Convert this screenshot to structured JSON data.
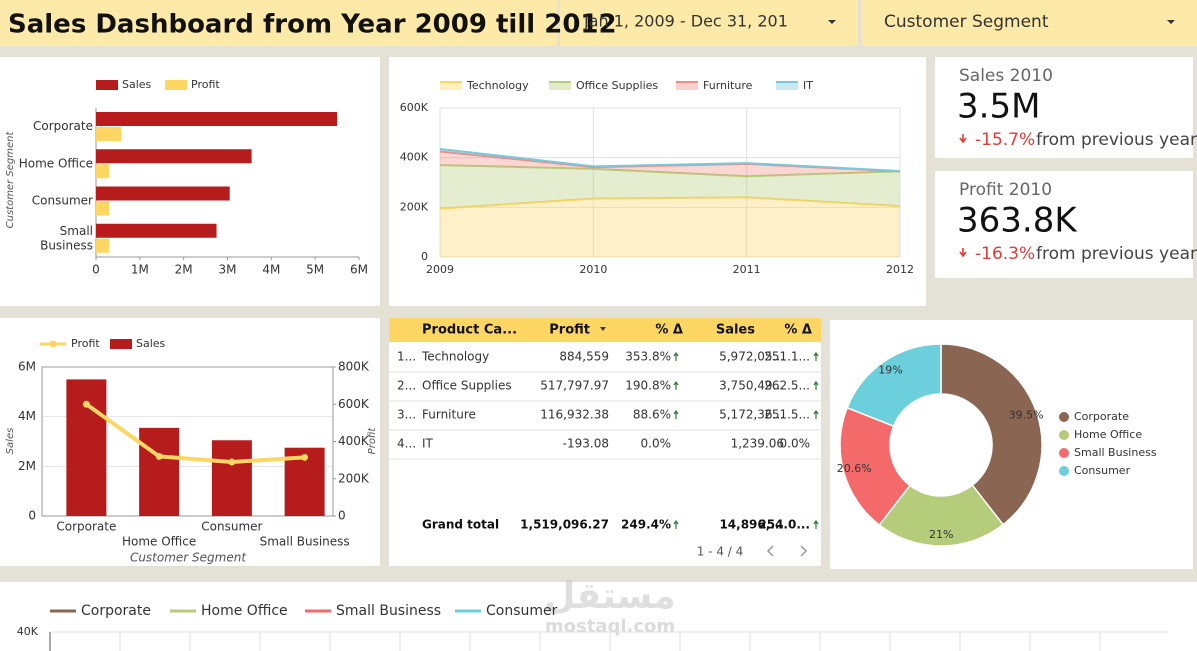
{
  "header": {
    "title": "Sales Dashboard from Year 2009 till 2012",
    "date_range": "Jan 1, 2009 - Dec 31, 201",
    "segment_filter": "Customer Segment"
  },
  "kpis": [
    {
      "label": "Sales 2010",
      "value": "3.5M",
      "change": "-15.7%",
      "note": "from previous year"
    },
    {
      "label": "Profit 2010",
      "value": "363.8K",
      "change": "-16.3%",
      "note": "from previous year"
    }
  ],
  "table": {
    "columns": [
      "Product Ca...",
      "Profit",
      "% Δ",
      "Sales",
      "% Δ"
    ],
    "rows": [
      [
        "1...",
        "Technology",
        "884,559",
        "353.8%",
        "5,972,05...",
        "251.1..."
      ],
      [
        "2...",
        "Office Supplies",
        "517,797.97",
        "190.8%",
        "3,750,49...",
        "262.5..."
      ],
      [
        "3...",
        "Furniture",
        "116,932.38",
        "88.6%",
        "5,172,36...",
        "251.5..."
      ],
      [
        "4...",
        "IT",
        "-193.08",
        "0.0%",
        "1,239.06",
        "0.0%"
      ]
    ],
    "total": [
      "Grand total",
      "1,519,096.27",
      "249.4%",
      "14,896,...",
      "254.0..."
    ],
    "pagination": "1 - 4 / 4"
  },
  "watermark": [
    "مستقل",
    "mostaql.com"
  ],
  "chart_data": [
    {
      "type": "bar",
      "horizontal": true,
      "y_label": "Customer Segment",
      "categories": [
        "Corporate",
        "Home Office",
        "Consumer",
        "Small Business"
      ],
      "series": [
        {
          "name": "Sales",
          "color": "#b71c1c",
          "values": [
            5500000,
            3550000,
            3050000,
            2750000
          ]
        },
        {
          "name": "Profit",
          "color": "#fdd663",
          "values": [
            580000,
            300000,
            300000,
            300000
          ]
        }
      ],
      "xlim": [
        0,
        6000000
      ],
      "xticks": [
        0,
        {
          "value": 1000000,
          "label": "1M"
        },
        {
          "value": 2000000,
          "label": "2M"
        },
        {
          "value": 3000000,
          "label": "3M"
        },
        {
          "value": 4000000,
          "label": "4M"
        },
        {
          "value": 5000000,
          "label": "5M"
        },
        {
          "value": 6000000,
          "label": "6M"
        }
      ]
    },
    {
      "type": "area",
      "stacked": true,
      "x": [
        2009,
        2010,
        2011,
        2012
      ],
      "series": [
        {
          "name": "Technology",
          "color": "#fdd663",
          "values": [
            195000,
            235000,
            240000,
            205000
          ]
        },
        {
          "name": "Office Supplies",
          "color": "#b5cc7a",
          "values": [
            175000,
            120000,
            85000,
            140000
          ]
        },
        {
          "name": "Furniture",
          "color": "#f28b82",
          "values": [
            55000,
            7000,
            50000,
            0
          ]
        },
        {
          "name": "IT",
          "color": "#78c8dc",
          "values": [
            10000,
            3000,
            3000,
            1000
          ]
        }
      ],
      "xlim": [
        2009,
        2012
      ],
      "xticks": [
        2009,
        2010,
        2011,
        2012
      ],
      "ylim": [
        0,
        600000
      ],
      "yticks": [
        0,
        {
          "value": 200000,
          "label": "200K"
        },
        {
          "value": 400000,
          "label": "400K"
        },
        {
          "value": 600000,
          "label": "600K"
        }
      ],
      "grid": true
    },
    {
      "type": "combo",
      "x_label": "Customer Segment",
      "y_label": "Sales",
      "y2_label": "Profit",
      "categories": [
        "Corporate",
        "Home Office",
        "Consumer",
        "Small Business"
      ],
      "series": [
        {
          "name": "Profit",
          "type": "line",
          "axis": "y2",
          "color": "#fdd663",
          "values": [
            600000,
            320000,
            290000,
            315000
          ]
        },
        {
          "name": "Sales",
          "type": "bar",
          "color": "#b71c1c",
          "values": [
            5500000,
            3550000,
            3050000,
            2750000
          ]
        }
      ],
      "ylim": [
        0,
        6000000
      ],
      "yticks": [
        0,
        {
          "value": 2000000,
          "label": "2M"
        },
        {
          "value": 4000000,
          "label": "4M"
        },
        {
          "value": 6000000,
          "label": "6M"
        }
      ],
      "y2lim": [
        0,
        800000
      ],
      "y2ticks": [
        0,
        {
          "value": 200000,
          "label": "200K"
        },
        {
          "value": 400000,
          "label": "400K"
        },
        {
          "value": 600000,
          "label": "600K"
        },
        {
          "value": 800000,
          "label": "800K"
        }
      ],
      "grid": true
    },
    {
      "type": "pie",
      "donut": true,
      "categories": [
        "Corporate",
        "Home Office",
        "Small Business",
        "Consumer"
      ],
      "values": [
        39.5,
        21,
        20.6,
        19
      ],
      "value_labels": [
        "39.5%",
        "21%",
        "20.6%",
        "19%"
      ],
      "colors": [
        "#8a6552",
        "#b5cc7a",
        "#f46a6a",
        "#6bcfdc"
      ]
    },
    {
      "type": "line",
      "series": [
        {
          "name": "Corporate",
          "color": "#8a6552"
        },
        {
          "name": "Home Office",
          "color": "#b5cc7a"
        },
        {
          "name": "Small Business",
          "color": "#f46a6a"
        },
        {
          "name": "Consumer",
          "color": "#6bcfdc"
        }
      ],
      "yticks": [
        {
          "value": 40000,
          "label": "40K"
        }
      ],
      "grid": true
    }
  ]
}
